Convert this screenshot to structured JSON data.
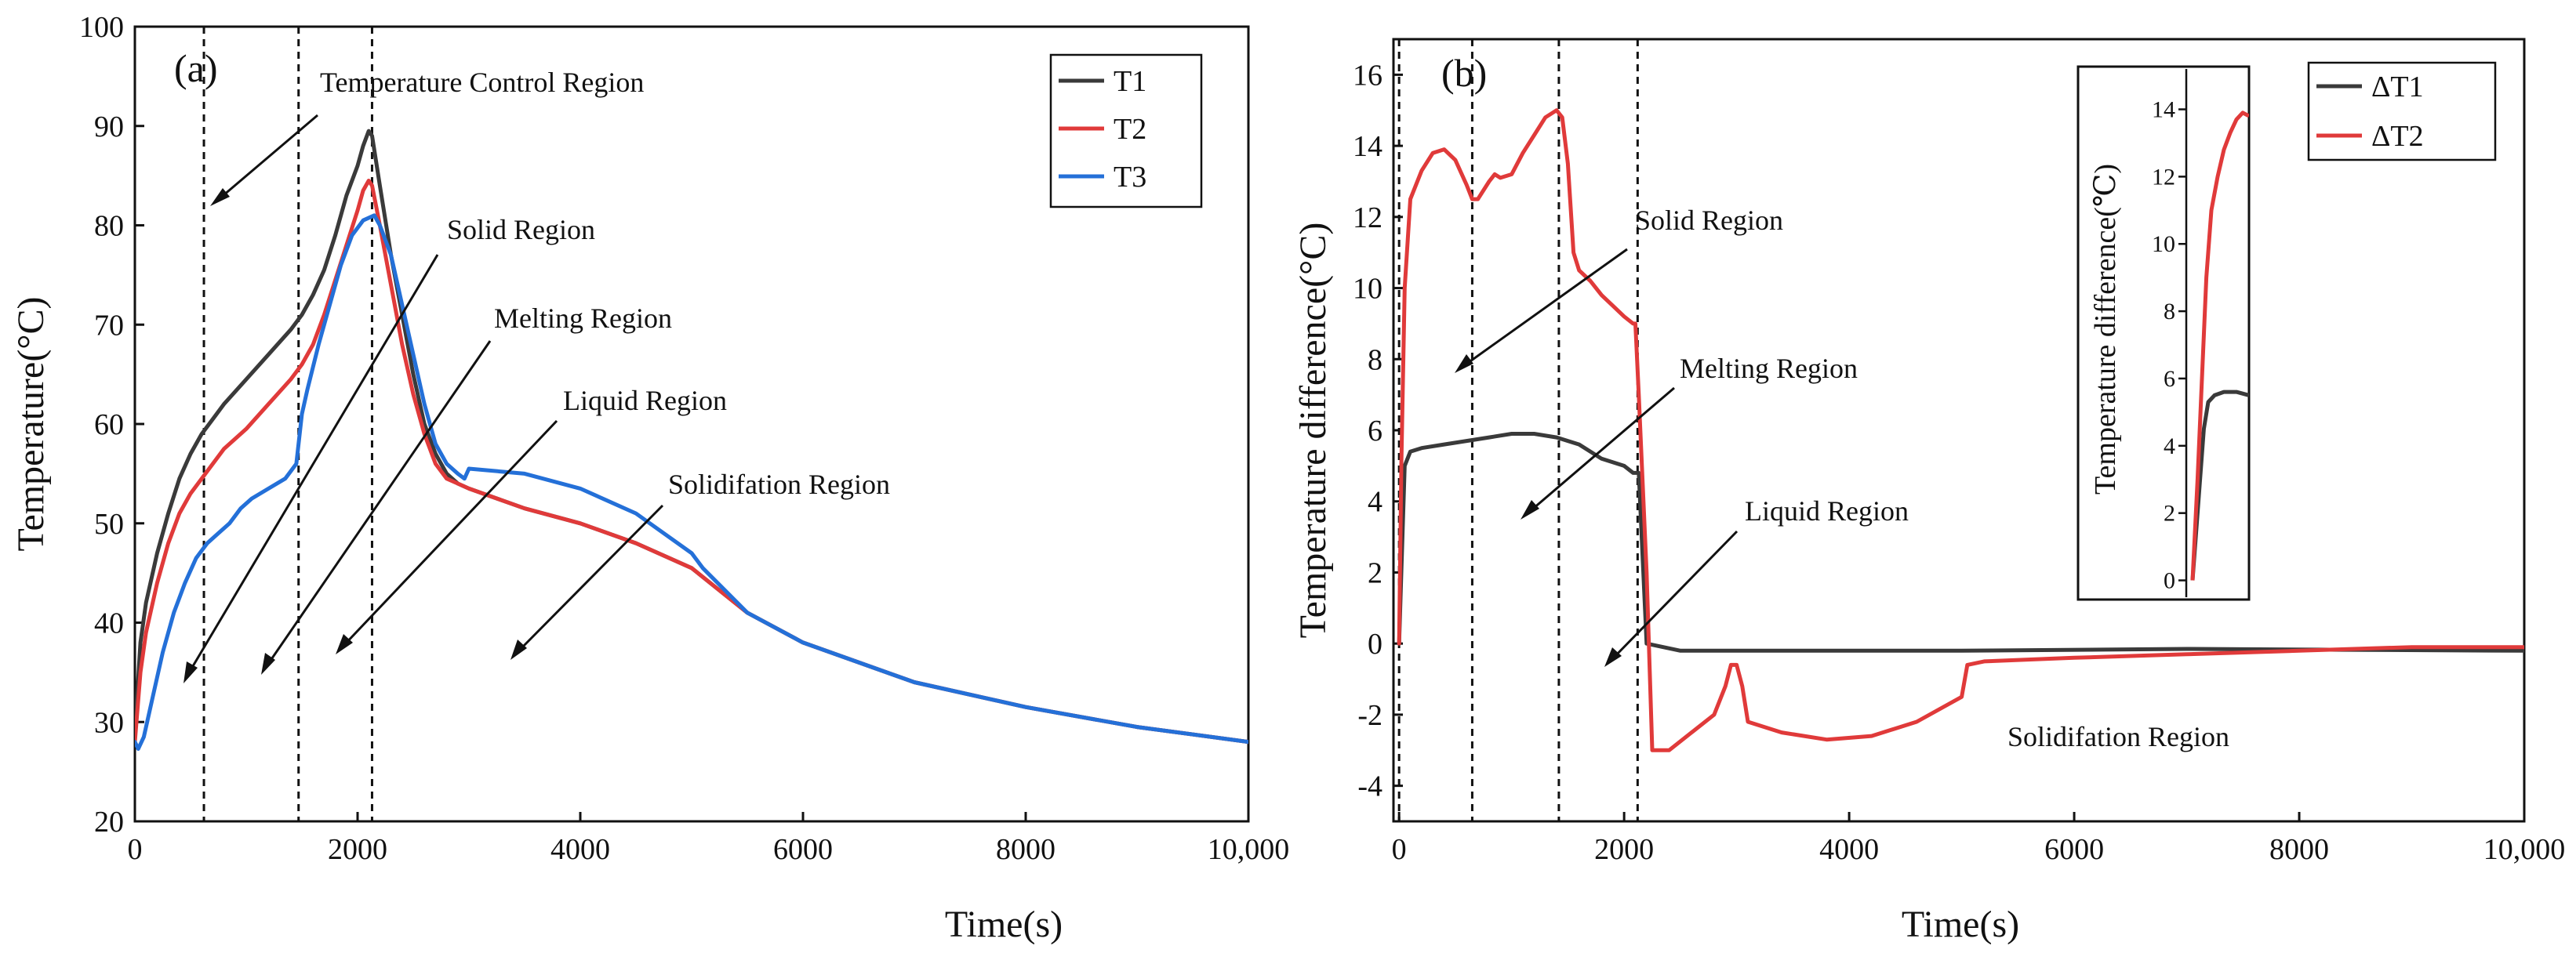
{
  "chart_data": [
    {
      "panel": "(a)",
      "type": "line",
      "xlabel": "Time(s)",
      "ylabel": "Temperature(°C)",
      "xlim": [
        0,
        10000
      ],
      "ylim": [
        20,
        100
      ],
      "xticks": [
        0,
        2000,
        4000,
        6000,
        8000,
        10000
      ],
      "xtick_labels": [
        "0",
        "2000",
        "4000",
        "6000",
        "8000",
        "10,000"
      ],
      "yticks": [
        20,
        30,
        40,
        50,
        60,
        70,
        80,
        90,
        100
      ],
      "legend_position": "top-right",
      "series": [
        {
          "name": "T1",
          "color": "#3a3a3a",
          "x": [
            0,
            50,
            100,
            200,
            300,
            400,
            500,
            600,
            700,
            800,
            1000,
            1200,
            1400,
            1500,
            1600,
            1700,
            1800,
            1900,
            2000,
            2050,
            2100,
            2130,
            2200,
            2300,
            2400,
            2500,
            2600,
            2700,
            2800,
            2900,
            3000,
            3500,
            4000,
            4500,
            5000,
            5500,
            6000,
            7000,
            8000,
            9000,
            10000
          ],
          "y": [
            29,
            38,
            42,
            47,
            51,
            54.5,
            57,
            59,
            60.5,
            62,
            64.5,
            67,
            69.5,
            71,
            73,
            75.5,
            79,
            83,
            86,
            88,
            89.5,
            89,
            84,
            77,
            71,
            65,
            60,
            57,
            55,
            54,
            53.5,
            51.5,
            50,
            48,
            45.5,
            41,
            38,
            34,
            31.5,
            29.5,
            28
          ]
        },
        {
          "name": "T2",
          "color": "#e03a3a",
          "x": [
            0,
            50,
            100,
            200,
            300,
            400,
            500,
            600,
            700,
            800,
            1000,
            1200,
            1400,
            1500,
            1600,
            1700,
            1800,
            1900,
            2000,
            2050,
            2100,
            2130,
            2200,
            2300,
            2400,
            2500,
            2600,
            2700,
            2800,
            2900,
            3000,
            3500,
            4000,
            4500,
            5000,
            5500,
            6000,
            7000,
            8000,
            9000,
            10000
          ],
          "y": [
            28,
            35,
            39,
            44,
            48,
            51,
            53,
            54.5,
            56,
            57.5,
            59.5,
            62,
            64.5,
            66,
            68,
            71,
            74.5,
            78,
            81.5,
            83.5,
            84.5,
            84,
            80,
            74,
            68,
            63,
            59,
            56,
            54.5,
            54,
            53.5,
            51.5,
            50,
            48,
            45.5,
            41,
            38,
            34,
            31.5,
            29.5,
            28
          ]
        },
        {
          "name": "T3",
          "color": "#2470d8",
          "x": [
            0,
            30,
            80,
            150,
            250,
            350,
            450,
            550,
            650,
            750,
            850,
            950,
            1050,
            1200,
            1350,
            1450,
            1500,
            1550,
            1650,
            1750,
            1850,
            1950,
            2050,
            2150,
            2200,
            2300,
            2400,
            2500,
            2600,
            2700,
            2800,
            2900,
            2960,
            3000,
            3500,
            4000,
            4500,
            5000,
            5100,
            5500,
            6000,
            7000,
            8000,
            9000,
            10000
          ],
          "y": [
            28,
            27.3,
            28.5,
            32,
            37,
            41,
            44,
            46.5,
            48,
            49,
            50,
            51.5,
            52.5,
            53.5,
            54.5,
            56,
            61,
            63.5,
            68,
            72,
            76,
            79,
            80.5,
            81,
            80,
            77,
            72,
            67,
            62,
            58,
            56,
            55,
            54.5,
            55.5,
            55,
            53.5,
            51,
            47,
            45.5,
            41,
            38,
            34,
            31.5,
            29.5,
            28
          ]
        }
      ],
      "vlines_x": [
        620,
        1470,
        2130
      ],
      "annotations": [
        "(a)",
        "Temperature Control Region",
        "Solid Region",
        "Melting Region",
        "Liquid Region",
        "Solidifation Region"
      ]
    },
    {
      "panel": "(b)",
      "type": "line",
      "xlabel": "Time(s)",
      "ylabel": "Temperature difference(°C)",
      "xlim": [
        -50,
        10000
      ],
      "ylim": [
        -5,
        17
      ],
      "xticks": [
        0,
        2000,
        4000,
        6000,
        8000,
        10000
      ],
      "xtick_labels": [
        "0",
        "2000",
        "4000",
        "6000",
        "8000",
        "10,000"
      ],
      "yticks": [
        -4,
        -2,
        0,
        2,
        4,
        6,
        8,
        10,
        12,
        14,
        16
      ],
      "legend_position": "top-right",
      "series": [
        {
          "name": "ΔT1",
          "color": "#3a3a3a",
          "x": [
            0,
            20,
            50,
            100,
            200,
            400,
            600,
            800,
            1000,
            1200,
            1400,
            1600,
            1800,
            2000,
            2080,
            2130,
            2200,
            2500,
            3000,
            5000,
            7000,
            10000
          ],
          "y": [
            0,
            2,
            5,
            5.4,
            5.5,
            5.6,
            5.7,
            5.8,
            5.9,
            5.9,
            5.8,
            5.6,
            5.2,
            5,
            4.8,
            4.8,
            0,
            -0.2,
            -0.2,
            -0.2,
            -0.15,
            -0.2
          ]
        },
        {
          "name": "ΔT2",
          "color": "#e03a3a",
          "x": [
            0,
            20,
            50,
            100,
            200,
            300,
            400,
            500,
            600,
            650,
            700,
            800,
            850,
            900,
            1000,
            1100,
            1200,
            1300,
            1400,
            1450,
            1500,
            1550,
            1600,
            1700,
            1800,
            1900,
            2000,
            2080,
            2100,
            2130,
            2200,
            2250,
            2400,
            2600,
            2800,
            2900,
            2950,
            3000,
            3050,
            3100,
            3400,
            3800,
            4200,
            4600,
            5000,
            5050,
            5200,
            6000,
            7000,
            8000,
            9000,
            10000
          ],
          "y": [
            0,
            5,
            10,
            12.5,
            13.3,
            13.8,
            13.9,
            13.6,
            12.9,
            12.5,
            12.5,
            13,
            13.2,
            13.1,
            13.2,
            13.8,
            14.3,
            14.8,
            15,
            14.8,
            13.5,
            11,
            10.5,
            10.2,
            9.8,
            9.5,
            9.2,
            9,
            9,
            7,
            2,
            -3,
            -3,
            -2.5,
            -2,
            -1.2,
            -0.6,
            -0.6,
            -1.2,
            -2.2,
            -2.5,
            -2.7,
            -2.6,
            -2.2,
            -1.5,
            -0.6,
            -0.5,
            -0.4,
            -0.3,
            -0.2,
            -0.1,
            -0.1
          ]
        }
      ],
      "vlines_x": [
        0,
        650,
        1420,
        2120
      ],
      "annotations": [
        "(b)",
        "Solid Region",
        "Melting Region",
        "Liquid Region",
        "Solidifation Region"
      ],
      "inset": {
        "ylabel": "Temperature difference(℃)",
        "yticks": [
          0,
          2,
          4,
          6,
          8,
          10,
          12,
          14
        ],
        "xlim": [
          0,
          100
        ],
        "ylim": [
          -0.5,
          15.2
        ],
        "series": [
          {
            "name": "ΔT1",
            "x": [
              10,
              20,
              28,
              35,
              45,
              60,
              80,
              100
            ],
            "y": [
              0,
              2.5,
              4.5,
              5.3,
              5.5,
              5.6,
              5.6,
              5.5
            ]
          },
          {
            "name": "ΔT2",
            "x": [
              10,
              18,
              25,
              32,
              40,
              50,
              60,
              70,
              80,
              90,
              100
            ],
            "y": [
              0,
              3,
              6,
              9,
              11,
              12,
              12.8,
              13.3,
              13.7,
              13.9,
              13.8
            ]
          }
        ]
      }
    }
  ]
}
